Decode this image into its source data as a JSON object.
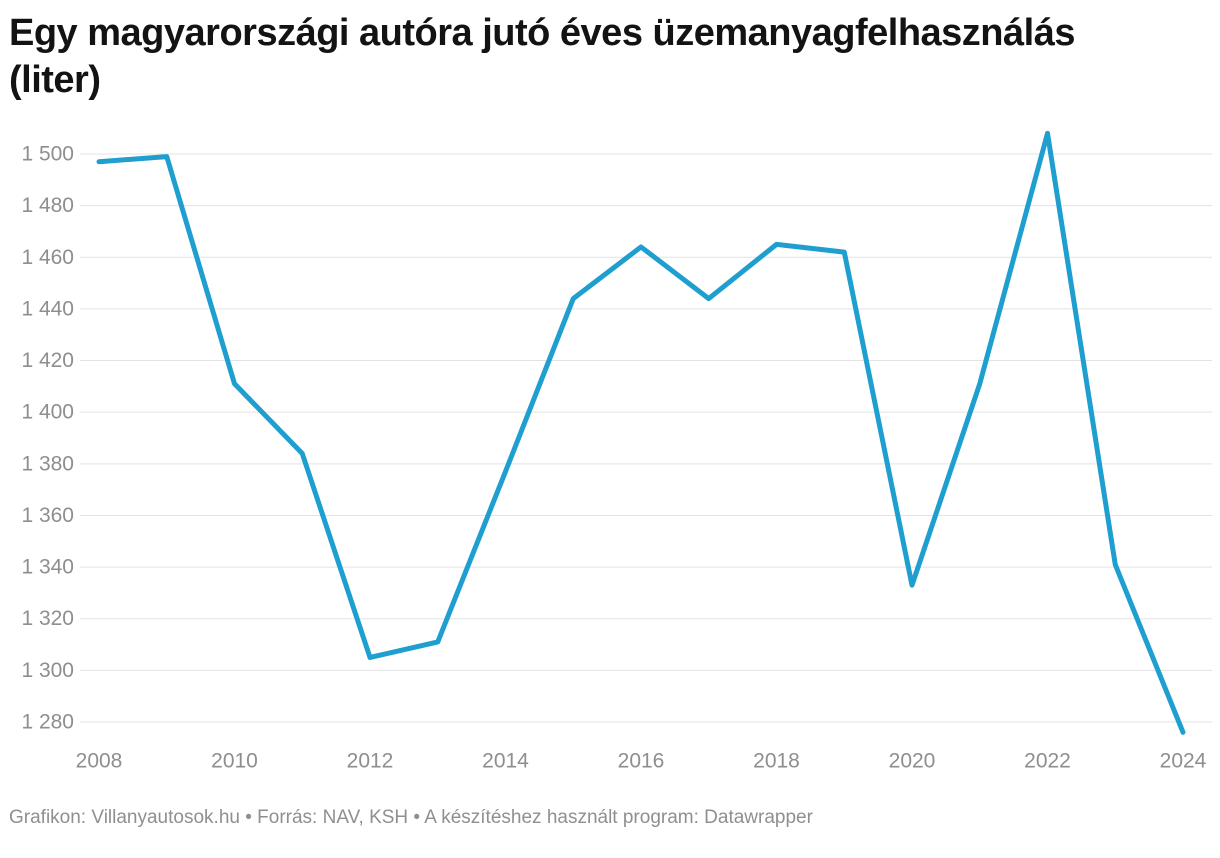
{
  "header": {
    "title": "Egy magyarországi autóra jutó éves üzemanyagfelhasználás (liter)",
    "title_line1": "Egy magyarországi autóra jutó éves üzemanyagfelhasználás",
    "title_line2": "(liter)"
  },
  "chart_data": {
    "type": "line",
    "title": "Egy magyarországi autóra jutó éves üzemanyagfelhasználás (liter)",
    "xlabel": "",
    "ylabel": "",
    "unit": "liter",
    "x": [
      2008,
      2009,
      2010,
      2011,
      2012,
      2013,
      2014,
      2015,
      2016,
      2017,
      2018,
      2019,
      2020,
      2021,
      2022,
      2023,
      2024
    ],
    "values": [
      1497,
      1499,
      1411,
      1384,
      1305,
      1311,
      1377,
      1444,
      1464,
      1444,
      1465,
      1462,
      1333,
      1411,
      1508,
      1341,
      1276
    ],
    "ylim": [
      1272,
      1512
    ],
    "yticks": [
      {
        "value": 1280,
        "label": "1 280"
      },
      {
        "value": 1300,
        "label": "1 300"
      },
      {
        "value": 1320,
        "label": "1 320"
      },
      {
        "value": 1340,
        "label": "1 340"
      },
      {
        "value": 1360,
        "label": "1 360"
      },
      {
        "value": 1380,
        "label": "1 380"
      },
      {
        "value": 1400,
        "label": "1 400"
      },
      {
        "value": 1420,
        "label": "1 420"
      },
      {
        "value": 1440,
        "label": "1 440"
      },
      {
        "value": 1460,
        "label": "1 460"
      },
      {
        "value": 1480,
        "label": "1 480"
      },
      {
        "value": 1500,
        "label": "1 500"
      }
    ],
    "xticks": [
      2008,
      2010,
      2012,
      2014,
      2016,
      2018,
      2020,
      2022,
      2024
    ],
    "grid": "horizontal",
    "legend": "none",
    "line_color": "#1e9fd0",
    "grid_color": "#e3e3e3",
    "tick_color": "#8e8e8e"
  },
  "footer": {
    "text": "Grafikon: Villanyautosok.hu • Forrás: NAV, KSH • A készítéshez használt program: Datawrapper"
  }
}
